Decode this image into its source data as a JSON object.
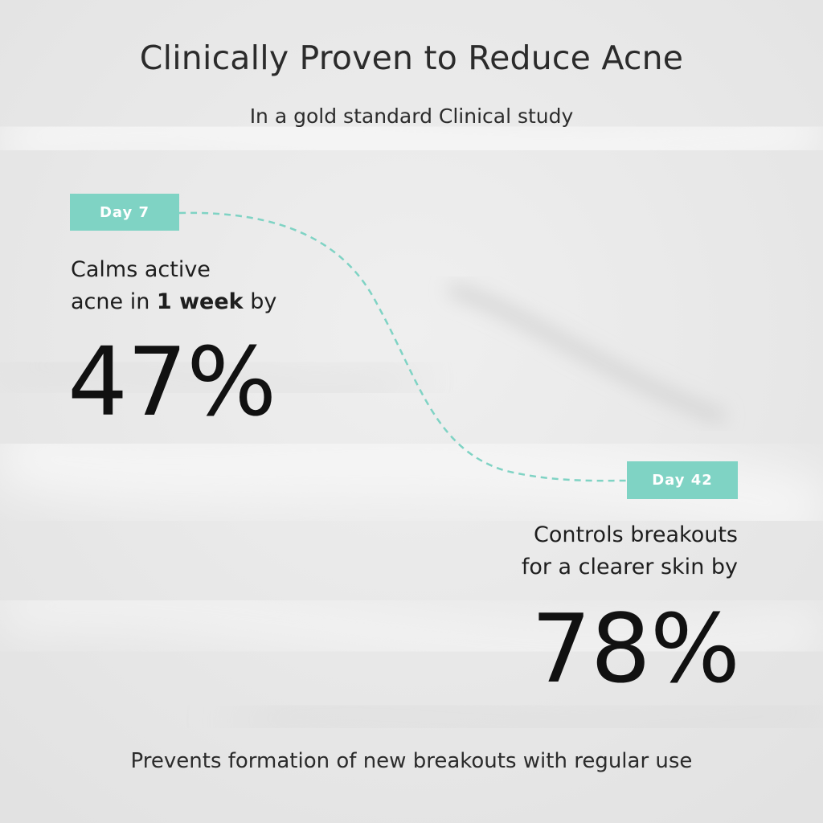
{
  "title": "Clinically Proven to Reduce Acne",
  "subtitle": "In a gold standard Clinical study",
  "day7": {
    "badge": "Day 7",
    "line1": "Calms active",
    "line2_pre": "acne in ",
    "line2_bold": "1 week",
    "line2_post": " by",
    "percent": "47%"
  },
  "day42": {
    "badge": "Day 42",
    "line1": "Controls breakouts",
    "line2": "for a clearer skin by",
    "percent": "78%"
  },
  "footer": "Prevents formation of new breakouts with regular use",
  "colors": {
    "accent": "#7fd3c4",
    "background": "#e9e9e9",
    "text": "#1c1c1c"
  }
}
